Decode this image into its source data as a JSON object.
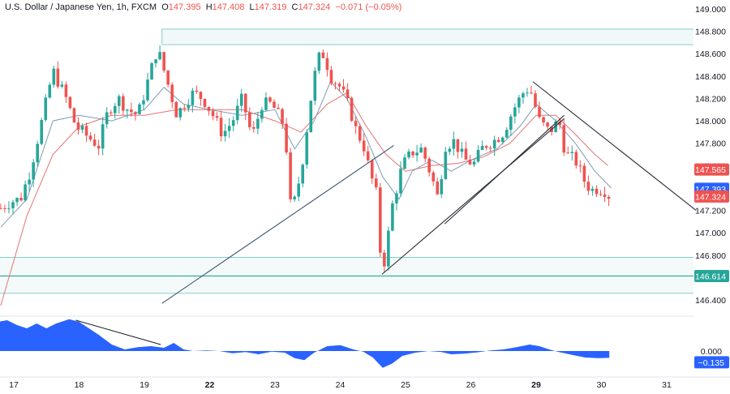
{
  "header": {
    "symbol": "U.S. Dollar / Japanese Yen, 1h, FXCM",
    "o_label": "O",
    "o_value": "147.395",
    "h_label": "H",
    "h_value": "147.408",
    "l_label": "L",
    "l_value": "147.319",
    "c_label": "C",
    "c_value": "147.324",
    "change": "−0.071 (−0.05%)"
  },
  "colors": {
    "up": "#26a69a",
    "down": "#ef5350",
    "ma_fast": "#7e9bb5",
    "ma_slow": "#e57373",
    "zone_fill": "#e8f5f3",
    "zone_line": "#86cfc8",
    "support": "#26a69a",
    "trendline": "#2a2e39",
    "oscillator": "#2962ff",
    "axis_text": "#131722"
  },
  "chart_data": [
    {
      "type": "candlestick",
      "title": "U.S. Dollar / Japanese Yen, 1h, FXCM",
      "ylim": [
        146.2,
        149.05
      ],
      "y_ticks": [
        "149.000",
        "148.800",
        "148.600",
        "148.400",
        "148.200",
        "148.000",
        "147.800",
        "147.600",
        "147.200",
        "147.000",
        "146.800",
        "146.400"
      ],
      "x_ticks": [
        {
          "label": "17",
          "x": 17.0,
          "bold": false
        },
        {
          "label": "18",
          "x": 18.0,
          "bold": false
        },
        {
          "label": "19",
          "x": 19.0,
          "bold": false
        },
        {
          "label": "22",
          "x": 20.0,
          "bold": true
        },
        {
          "label": "23",
          "x": 21.0,
          "bold": false
        },
        {
          "label": "24",
          "x": 22.0,
          "bold": false
        },
        {
          "label": "25",
          "x": 23.0,
          "bold": false
        },
        {
          "label": "26",
          "x": 24.0,
          "bold": false
        },
        {
          "label": "29",
          "x": 25.0,
          "bold": true
        },
        {
          "label": "30",
          "x": 26.0,
          "bold": false
        },
        {
          "label": "31",
          "x": 27.0,
          "bold": false
        }
      ],
      "price_labels": [
        {
          "value": 147.565,
          "text": "147.565",
          "color": "#ef5350"
        },
        {
          "value": 147.393,
          "text": "147.393",
          "color": "#2962ff"
        },
        {
          "value": 147.324,
          "text": "147.324",
          "color": "#ef5350"
        },
        {
          "value": 146.614,
          "text": "146.614",
          "color": "#26a69a"
        }
      ],
      "anchors": [
        [
          16.8,
          147.22
        ],
        [
          16.95,
          147.28
        ],
        [
          17.1,
          147.3
        ],
        [
          17.25,
          147.55
        ],
        [
          17.45,
          148.05
        ],
        [
          17.6,
          148.45
        ],
        [
          17.8,
          148.2
        ],
        [
          17.95,
          147.95
        ],
        [
          18.15,
          147.85
        ],
        [
          18.3,
          147.78
        ],
        [
          18.45,
          148.1
        ],
        [
          18.6,
          148.2
        ],
        [
          18.75,
          148.1
        ],
        [
          18.9,
          148.05
        ],
        [
          19.05,
          148.35
        ],
        [
          19.2,
          148.65
        ],
        [
          19.35,
          148.35
        ],
        [
          19.5,
          148.05
        ],
        [
          19.6,
          148.15
        ],
        [
          19.75,
          148.25
        ],
        [
          19.9,
          148.2
        ],
        [
          20.05,
          148.05
        ],
        [
          20.2,
          147.88
        ],
        [
          20.35,
          148.0
        ],
        [
          20.5,
          148.2
        ],
        [
          20.65,
          147.85
        ],
        [
          20.8,
          148.15
        ],
        [
          20.95,
          148.15
        ],
        [
          21.05,
          148.05
        ],
        [
          21.15,
          147.95
        ],
        [
          21.25,
          147.15
        ],
        [
          21.4,
          147.55
        ],
        [
          21.55,
          148.2
        ],
        [
          21.65,
          148.55
        ],
        [
          21.75,
          148.6
        ],
        [
          21.85,
          148.4
        ],
        [
          22.0,
          148.3
        ],
        [
          22.15,
          148.1
        ],
        [
          22.25,
          147.9
        ],
        [
          22.35,
          147.8
        ],
        [
          22.45,
          147.55
        ],
        [
          22.55,
          147.35
        ],
        [
          22.63,
          146.7
        ],
        [
          22.68,
          146.75
        ],
        [
          22.8,
          147.25
        ],
        [
          22.95,
          147.6
        ],
        [
          23.1,
          147.72
        ],
        [
          23.25,
          147.75
        ],
        [
          23.4,
          147.5
        ],
        [
          23.5,
          147.3
        ],
        [
          23.6,
          147.78
        ],
        [
          23.75,
          147.82
        ],
        [
          23.9,
          147.65
        ],
        [
          24.05,
          147.62
        ],
        [
          24.2,
          147.78
        ],
        [
          24.35,
          147.82
        ],
        [
          24.5,
          147.9
        ],
        [
          24.65,
          148.1
        ],
        [
          24.8,
          148.25
        ],
        [
          24.9,
          148.3
        ],
        [
          25.05,
          148.0
        ],
        [
          25.2,
          147.9
        ],
        [
          25.35,
          148.0
        ],
        [
          25.45,
          147.7
        ],
        [
          25.6,
          147.65
        ],
        [
          25.75,
          147.45
        ],
        [
          25.85,
          147.38
        ],
        [
          25.95,
          147.4
        ],
        [
          26.05,
          147.38
        ],
        [
          26.12,
          147.33
        ]
      ],
      "ma_fast": [
        [
          16.8,
          147.05
        ],
        [
          17.2,
          147.3
        ],
        [
          17.6,
          148.0
        ],
        [
          18.0,
          148.05
        ],
        [
          18.5,
          148.0
        ],
        [
          19.0,
          148.1
        ],
        [
          19.3,
          148.3
        ],
        [
          19.6,
          148.15
        ],
        [
          20.0,
          148.1
        ],
        [
          20.5,
          148.05
        ],
        [
          21.0,
          148.1
        ],
        [
          21.3,
          147.75
        ],
        [
          21.6,
          148.0
        ],
        [
          21.85,
          148.35
        ],
        [
          22.1,
          148.2
        ],
        [
          22.4,
          147.85
        ],
        [
          22.65,
          147.5
        ],
        [
          22.9,
          147.3
        ],
        [
          23.1,
          147.55
        ],
        [
          23.4,
          147.65
        ],
        [
          23.7,
          147.55
        ],
        [
          24.0,
          147.65
        ],
        [
          24.4,
          147.75
        ],
        [
          24.75,
          147.95
        ],
        [
          25.0,
          148.15
        ],
        [
          25.3,
          148.0
        ],
        [
          25.6,
          147.8
        ],
        [
          25.9,
          147.55
        ],
        [
          26.15,
          147.4
        ]
      ],
      "ma_slow": [
        [
          16.8,
          146.35
        ],
        [
          17.2,
          147.15
        ],
        [
          17.6,
          147.7
        ],
        [
          18.0,
          147.95
        ],
        [
          18.5,
          148.05
        ],
        [
          19.0,
          148.05
        ],
        [
          19.5,
          148.1
        ],
        [
          20.0,
          148.1
        ],
        [
          20.5,
          148.1
        ],
        [
          21.0,
          148.0
        ],
        [
          21.4,
          147.9
        ],
        [
          21.8,
          148.15
        ],
        [
          22.1,
          148.25
        ],
        [
          22.4,
          147.95
        ],
        [
          22.7,
          147.7
        ],
        [
          23.0,
          147.55
        ],
        [
          23.4,
          147.6
        ],
        [
          23.8,
          147.62
        ],
        [
          24.2,
          147.68
        ],
        [
          24.6,
          147.8
        ],
        [
          25.0,
          148.05
        ],
        [
          25.3,
          148.05
        ],
        [
          25.6,
          147.88
        ],
        [
          25.9,
          147.7
        ],
        [
          26.1,
          147.6
        ]
      ],
      "resistance_zone": [
        148.68,
        148.82
      ],
      "resistance_zone_start_x": 19.27,
      "support_zone": [
        146.46,
        146.78
      ],
      "support_line": 146.614,
      "trendlines": [
        [
          [
            19.27,
            146.37
          ],
          [
            22.82,
            147.78
          ]
        ],
        [
          [
            22.64,
            146.63
          ],
          [
            25.43,
            148.02
          ]
        ],
        [
          [
            23.6,
            147.08
          ],
          [
            25.43,
            148.05
          ]
        ],
        [
          [
            24.95,
            148.35
          ],
          [
            27.45,
            147.2
          ]
        ]
      ],
      "oscillator": {
        "zero_label": "0.000",
        "last_label": "−0.135",
        "last_value": -0.135,
        "ylim": [
          -0.65,
          1.0
        ],
        "series": [
          [
            16.75,
            0.9
          ],
          [
            16.9,
            0.95
          ],
          [
            17.05,
            0.8
          ],
          [
            17.2,
            0.7
          ],
          [
            17.35,
            0.85
          ],
          [
            17.5,
            0.7
          ],
          [
            17.65,
            0.85
          ],
          [
            17.85,
            0.98
          ],
          [
            18.0,
            0.9
          ],
          [
            18.15,
            0.7
          ],
          [
            18.3,
            0.5
          ],
          [
            18.5,
            0.2
          ],
          [
            18.7,
            0.05
          ],
          [
            18.9,
            0.12
          ],
          [
            19.1,
            0.15
          ],
          [
            19.3,
            0.1
          ],
          [
            19.45,
            0.25
          ],
          [
            19.6,
            0.05
          ],
          [
            19.75,
            0.0
          ],
          [
            19.95,
            0.02
          ],
          [
            20.15,
            0.0
          ],
          [
            20.35,
            -0.07
          ],
          [
            20.55,
            -0.03
          ],
          [
            20.75,
            -0.1
          ],
          [
            20.95,
            -0.02
          ],
          [
            21.15,
            -0.05
          ],
          [
            21.3,
            -0.22
          ],
          [
            21.45,
            -0.28
          ],
          [
            21.6,
            -0.05
          ],
          [
            21.8,
            0.15
          ],
          [
            22.0,
            0.18
          ],
          [
            22.2,
            0.05
          ],
          [
            22.35,
            -0.02
          ],
          [
            22.5,
            -0.2
          ],
          [
            22.65,
            -0.52
          ],
          [
            22.8,
            -0.38
          ],
          [
            22.95,
            -0.15
          ],
          [
            23.15,
            -0.05
          ],
          [
            23.35,
            0.0
          ],
          [
            23.55,
            -0.03
          ],
          [
            23.7,
            -0.1
          ],
          [
            23.9,
            -0.08
          ],
          [
            24.1,
            -0.04
          ],
          [
            24.3,
            0.02
          ],
          [
            24.5,
            0.05
          ],
          [
            24.7,
            0.12
          ],
          [
            24.9,
            0.2
          ],
          [
            25.05,
            0.15
          ],
          [
            25.2,
            0.05
          ],
          [
            25.35,
            -0.03
          ],
          [
            25.55,
            -0.12
          ],
          [
            25.75,
            -0.2
          ],
          [
            25.95,
            -0.22
          ],
          [
            26.12,
            -0.21
          ]
        ],
        "divergence_line": [
          [
            17.95,
            0.95
          ],
          [
            19.25,
            0.2
          ]
        ]
      }
    }
  ]
}
